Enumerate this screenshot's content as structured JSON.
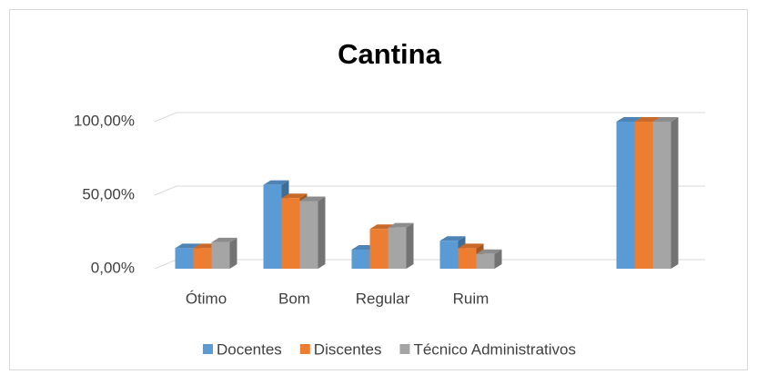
{
  "chart_data": {
    "type": "bar",
    "title": "Cantina",
    "categories": [
      "Ótimo",
      "Bom",
      "Regular",
      "Ruim",
      null,
      null
    ],
    "series": [
      {
        "name": "Docentes",
        "color": "#5b9bd5",
        "values": [
          14,
          57,
          13,
          19,
          null,
          100
        ]
      },
      {
        "name": "Discentes",
        "color": "#ed7d31",
        "values": [
          14,
          48,
          27,
          14,
          null,
          100
        ]
      },
      {
        "name": "Técnico Administrativos",
        "color": "#a5a5a5",
        "values": [
          18,
          46,
          28,
          10,
          null,
          100
        ]
      }
    ],
    "ylim": [
      0,
      100
    ],
    "yticks": [
      {
        "value": 0,
        "label": "0,00%"
      },
      {
        "value": 50,
        "label": "50,00%"
      },
      {
        "value": 100,
        "label": "100,00%"
      }
    ],
    "grid": true,
    "legend": "bottom"
  }
}
